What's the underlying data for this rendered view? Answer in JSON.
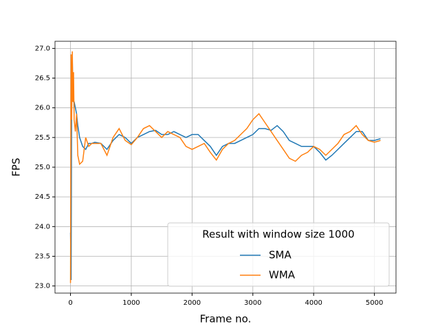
{
  "chart_data": {
    "type": "line",
    "x_label": "Frame no.",
    "y_label": "FPS",
    "legend_title": "Result with window size 1000",
    "legend_position": "lower-right",
    "grid": true,
    "x": [
      0,
      10,
      20,
      30,
      40,
      50,
      60,
      80,
      100,
      120,
      150,
      200,
      250,
      300,
      350,
      400,
      500,
      600,
      700,
      800,
      900,
      1000,
      1100,
      1200,
      1300,
      1400,
      1500,
      1600,
      1700,
      1800,
      1900,
      2000,
      2100,
      2200,
      2300,
      2400,
      2500,
      2600,
      2700,
      2800,
      2900,
      3000,
      3100,
      3200,
      3300,
      3400,
      3500,
      3600,
      3700,
      3800,
      3900,
      4000,
      4100,
      4200,
      4300,
      4400,
      4500,
      4600,
      4700,
      4800,
      4900,
      5000,
      5100
    ],
    "series": [
      {
        "name": "SMA",
        "color": "#1f77b4",
        "values": [
          23.9,
          23.1,
          26.5,
          26.8,
          26.2,
          26.1,
          26.1,
          26.0,
          25.9,
          25.7,
          25.5,
          25.35,
          25.3,
          25.4,
          25.4,
          25.42,
          25.4,
          25.3,
          25.45,
          25.55,
          25.5,
          25.4,
          25.5,
          25.55,
          25.6,
          25.62,
          25.55,
          25.55,
          25.6,
          25.55,
          25.5,
          25.55,
          25.55,
          25.45,
          25.35,
          25.2,
          25.35,
          25.4,
          25.4,
          25.45,
          25.5,
          25.55,
          25.65,
          25.65,
          25.62,
          25.7,
          25.6,
          25.45,
          25.4,
          25.35,
          25.35,
          25.35,
          25.25,
          25.12,
          25.2,
          25.3,
          25.4,
          25.5,
          25.6,
          25.6,
          25.45,
          25.45,
          25.48
        ]
      },
      {
        "name": "WMA",
        "color": "#ff7f0e",
        "values": [
          23.05,
          26.9,
          25.8,
          26.95,
          26.1,
          26.6,
          25.8,
          25.6,
          25.9,
          25.2,
          25.05,
          25.1,
          25.5,
          25.35,
          25.4,
          25.4,
          25.4,
          25.2,
          25.5,
          25.65,
          25.45,
          25.38,
          25.5,
          25.65,
          25.7,
          25.6,
          25.5,
          25.6,
          25.55,
          25.5,
          25.35,
          25.3,
          25.35,
          25.4,
          25.25,
          25.12,
          25.3,
          25.4,
          25.45,
          25.55,
          25.65,
          25.8,
          25.9,
          25.75,
          25.6,
          25.45,
          25.3,
          25.15,
          25.1,
          25.2,
          25.25,
          25.35,
          25.3,
          25.2,
          25.3,
          25.4,
          25.55,
          25.6,
          25.7,
          25.55,
          25.45,
          25.42,
          25.45
        ]
      }
    ],
    "xlim": [
      -255,
      5355
    ],
    "xticks": [
      0,
      1000,
      2000,
      3000,
      4000,
      5000
    ],
    "ylim": [
      22.88,
      27.12
    ],
    "yticks": [
      {
        "value": 23,
        "label": "23.0"
      },
      {
        "value": 23.5,
        "label": "23.5"
      },
      {
        "value": 24,
        "label": "24.0"
      },
      {
        "value": 24.5,
        "label": "24.5"
      },
      {
        "value": 25,
        "label": "25.0"
      },
      {
        "value": 25.5,
        "label": "25.5"
      },
      {
        "value": 26,
        "label": "26.0"
      },
      {
        "value": 26.5,
        "label": "26.5"
      },
      {
        "value": 27,
        "label": "27.0"
      }
    ]
  }
}
